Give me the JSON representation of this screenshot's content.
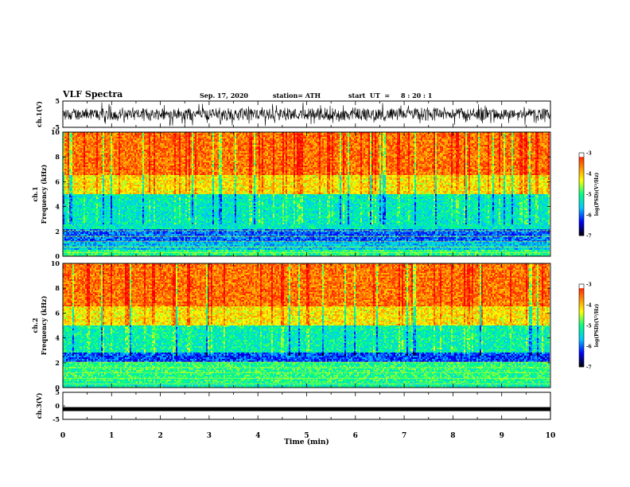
{
  "header": {
    "title": "VLF Spectra",
    "date": "Sep. 17, 2020",
    "station": "station= ATH",
    "start_label": "start  UT  =",
    "start_time": "8 : 20 : 1"
  },
  "colors": {
    "axis": "#000000",
    "colormap": [
      "#000080",
      "#0000ff",
      "#00c8ff",
      "#00ff80",
      "#ffff00",
      "#ff8000",
      "#ff0000",
      "#ffffff"
    ]
  },
  "chart_data": [
    {
      "type": "line",
      "panel": "ch1-waveform",
      "ylabel": "ch.1(V)",
      "ylim": [
        -5,
        5
      ],
      "yticks": [
        "5",
        "-5"
      ],
      "xlim": [
        0,
        10
      ],
      "description_values": "noisy waveform fluctuating roughly between -4 and 4 V"
    },
    {
      "type": "heatmap",
      "panel": "ch1-spectrogram",
      "ylabel": "ch.1\nFrequency (kHz)",
      "ylabel_line1": "ch.1",
      "ylabel_line2": "Frequency (kHz)",
      "ylim": [
        0,
        10
      ],
      "yticks": [
        "0",
        "2",
        "4",
        "6",
        "8",
        "10"
      ],
      "xlim": [
        0,
        9.8
      ],
      "colorbar": {
        "label": "log(PSD)(V²/Hz)",
        "range": [
          -7,
          -3
        ],
        "ticks": [
          "-3",
          "-4",
          "-5",
          "-6",
          "-7"
        ]
      },
      "bands": [
        {
          "from": 0,
          "to": 0.5,
          "level": -5.0
        },
        {
          "from": 0.5,
          "to": 1.1,
          "level": -5.6
        },
        {
          "from": 1.1,
          "to": 2.2,
          "level": -6.0
        },
        {
          "from": 2.2,
          "to": 5.0,
          "level": -5.3
        },
        {
          "from": 5.0,
          "to": 6.5,
          "level": -4.2
        },
        {
          "from": 6.5,
          "to": 10,
          "level": -3.6
        }
      ]
    },
    {
      "type": "heatmap",
      "panel": "ch2-spectrogram",
      "ylabel_line1": "ch.2",
      "ylabel_line2": "Frequency (kHz)",
      "ylim": [
        0,
        10
      ],
      "yticks": [
        "0",
        "2",
        "4",
        "6",
        "8",
        "10"
      ],
      "xlim": [
        0,
        9.8
      ],
      "colorbar": {
        "label": "log(PSD)(V²/Hz)",
        "range": [
          -7,
          -3
        ],
        "ticks": [
          "-3",
          "-4",
          "-5",
          "-6",
          "-7"
        ]
      },
      "bands": [
        {
          "from": 0,
          "to": 0.4,
          "level": -5.2
        },
        {
          "from": 0.4,
          "to": 2.0,
          "level": -5.0
        },
        {
          "from": 2.0,
          "to": 2.8,
          "level": -6.1
        },
        {
          "from": 2.8,
          "to": 5.0,
          "level": -5.2
        },
        {
          "from": 5.0,
          "to": 6.5,
          "level": -4.2
        },
        {
          "from": 6.5,
          "to": 10,
          "level": -3.6
        }
      ]
    },
    {
      "type": "line",
      "panel": "ch3-waveform",
      "ylabel": "ch.3(V)",
      "ylim": [
        -5,
        5
      ],
      "yticks": [
        "5",
        "0",
        "-5"
      ],
      "xlim": [
        0,
        10
      ],
      "xlabel": "Time (min)",
      "xticks": [
        "0",
        "1",
        "2",
        "3",
        "4",
        "5",
        "6",
        "7",
        "8",
        "9",
        "10"
      ],
      "level": -1.2
    }
  ]
}
